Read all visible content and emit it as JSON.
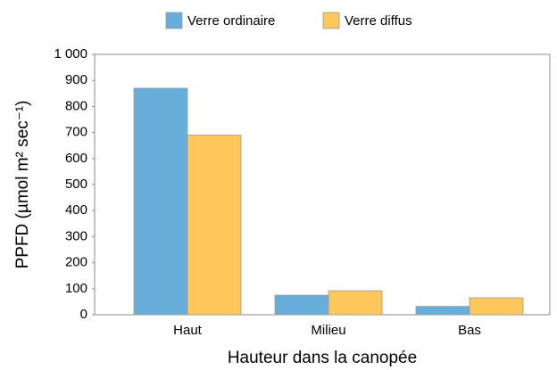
{
  "chart_data": {
    "type": "bar",
    "y_label": "PPFD (µmol m² sec⁻¹)",
    "x_label": "Hauteur dans la canopée",
    "categories": [
      "Haut",
      "Milieu",
      "Bas"
    ],
    "series": [
      {
        "name": "Verre ordinaire",
        "color": "#67aedb",
        "values": [
          870,
          75,
          32
        ]
      },
      {
        "name": "Verre diffus",
        "color": "#fdc75c",
        "values": [
          690,
          92,
          65
        ]
      }
    ],
    "ylim": [
      0,
      1000
    ],
    "yticks": [
      0,
      100,
      200,
      300,
      400,
      500,
      600,
      700,
      800,
      900,
      {
        "value": 1000,
        "label": "1 000"
      }
    ],
    "grid": false,
    "legend": "top"
  }
}
